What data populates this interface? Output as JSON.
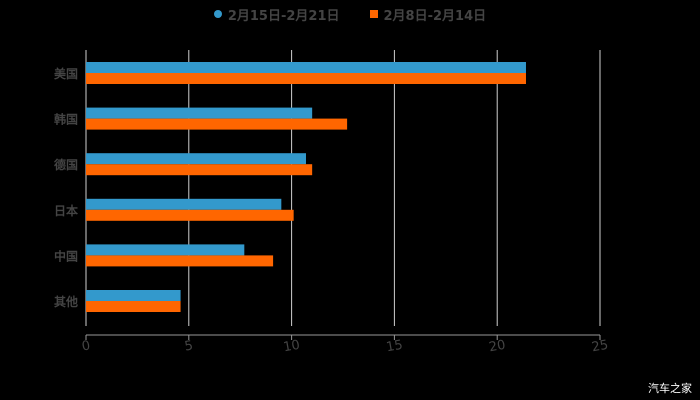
{
  "legend": [
    {
      "label": "2月15日-2月21日",
      "color": "#3399cc",
      "shape": "circle"
    },
    {
      "label": "2月8日-2月14日",
      "color": "#ff6600",
      "shape": "square"
    }
  ],
  "watermark": "汽车之家",
  "chart_data": {
    "type": "bar",
    "orientation": "horizontal",
    "title": "",
    "xlabel": "",
    "ylabel": "",
    "xlim": [
      0,
      25
    ],
    "xticks": [
      0,
      5,
      10,
      15,
      20,
      25
    ],
    "grid": true,
    "legend_position": "top",
    "categories": [
      "美国",
      "韩国",
      "德国",
      "日本",
      "中国",
      "其他"
    ],
    "series": [
      {
        "name": "2月15日-2月21日",
        "color": "#3399cc",
        "values": [
          21.4,
          11.0,
          10.7,
          9.5,
          7.7,
          4.6
        ]
      },
      {
        "name": "2月8日-2月14日",
        "color": "#ff6600",
        "values": [
          21.4,
          12.7,
          11.0,
          10.1,
          9.1,
          4.6
        ]
      }
    ]
  }
}
